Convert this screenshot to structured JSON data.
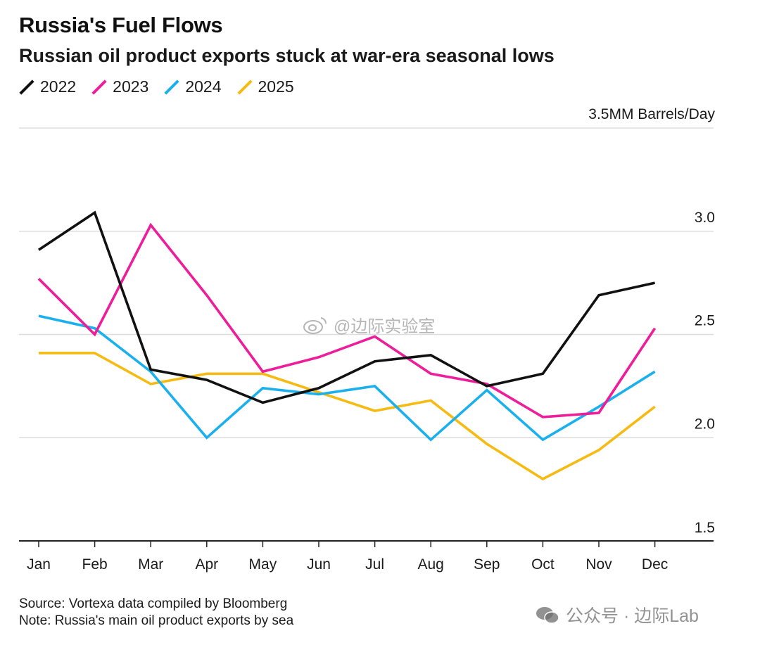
{
  "header": {
    "title": "Russia's Fuel Flows",
    "subtitle": "Russian oil product exports stuck at war-era seasonal lows"
  },
  "chart_data": {
    "type": "line",
    "title": "Russia's Fuel Flows",
    "subtitle": "Russian oil product exports stuck at war-era seasonal lows",
    "ylabel": "3.5MM Barrels/Day",
    "xlabel": "",
    "categories": [
      "Jan",
      "Feb",
      "Mar",
      "Apr",
      "May",
      "Jun",
      "Jul",
      "Aug",
      "Sep",
      "Oct",
      "Nov",
      "Dec"
    ],
    "ylim": [
      1.5,
      3.5
    ],
    "yticks": [
      {
        "value": 3.5,
        "label": "3.5MM Barrels/Day"
      },
      {
        "value": 3.0,
        "label": "3.0"
      },
      {
        "value": 2.5,
        "label": "2.5"
      },
      {
        "value": 2.0,
        "label": "2.0"
      },
      {
        "value": 1.5,
        "label": "1.5"
      }
    ],
    "grid": true,
    "legend_position": "top-left",
    "series": [
      {
        "name": "2022",
        "color": "#111111",
        "values": [
          2.91,
          3.09,
          2.33,
          2.28,
          2.17,
          2.24,
          2.37,
          2.4,
          2.25,
          2.31,
          2.69,
          2.75
        ]
      },
      {
        "name": "2023",
        "color": "#ee1d9a",
        "values": [
          2.77,
          2.5,
          3.03,
          2.69,
          2.32,
          2.39,
          2.49,
          2.31,
          2.26,
          2.1,
          2.12,
          2.53
        ]
      },
      {
        "name": "2024",
        "color": "#1ab0ee",
        "values": [
          2.59,
          2.53,
          2.32,
          2.0,
          2.24,
          2.21,
          2.25,
          1.99,
          2.23,
          1.99,
          2.15,
          2.32
        ]
      },
      {
        "name": "2025",
        "color": "#f5bb12",
        "values": [
          2.41,
          2.41,
          2.26,
          2.31,
          2.31,
          2.22,
          2.13,
          2.18,
          1.97,
          1.8,
          1.94,
          2.15
        ]
      }
    ]
  },
  "footer": {
    "source": "Source: Vortexa data compiled by Bloomberg",
    "note": "Note: Russia's main oil product exports by sea"
  },
  "watermarks": {
    "center": "@边际实验室",
    "corner": "公众号 · 边际Lab"
  }
}
